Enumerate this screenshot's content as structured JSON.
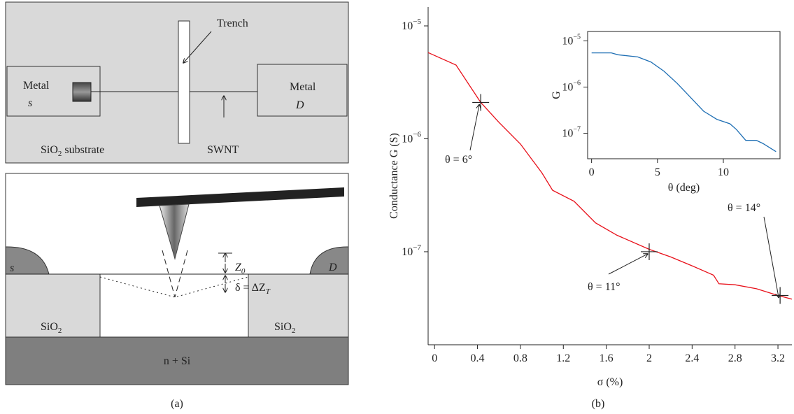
{
  "diagram": {
    "top": {
      "trench": "Trench",
      "metal_s": "Metal",
      "s": "s",
      "metal_d": "Metal",
      "d": "D",
      "swnt": "SWNT",
      "substrate": {
        "base": "SiO",
        "sub": "2",
        "rest": " substrate"
      }
    },
    "bottom": {
      "s": "s",
      "d": "D",
      "z0": {
        "base": "Z",
        "sub": "0"
      },
      "delta": {
        "base": "δ = ΔZ",
        "sub": "T"
      },
      "sio2_left": {
        "base": "SiO",
        "sub": "2"
      },
      "sio2_right": {
        "base": "SiO",
        "sub": "2"
      },
      "substrate": "n + Si"
    }
  },
  "captions": [
    "(a)",
    "(b)"
  ],
  "chart_data": [
    {
      "type": "line",
      "ylabel": "Conductance G (S)",
      "xlabel": "σ (%)",
      "log_y": true,
      "color": "#e8101a",
      "x": [
        -0.06,
        0.2,
        0.43,
        0.6,
        0.8,
        1.0,
        1.1,
        1.3,
        1.5,
        1.7,
        2.0,
        2.2,
        2.4,
        2.6,
        2.65,
        2.8,
        3.0,
        3.2,
        3.33
      ],
      "values": [
        5.8e-06,
        4.5e-06,
        2.1e-06,
        1.4e-06,
        9e-07,
        5e-07,
        3.5e-07,
        2.8e-07,
        1.8e-07,
        1.4e-07,
        1.05e-07,
        9e-08,
        7.5e-08,
        6.2e-08,
        5.2e-08,
        5.1e-08,
        4.7e-08,
        4.1e-08,
        3.8e-08
      ],
      "xlim": [
        -0.06,
        3.33
      ],
      "ylim": [
        1.5e-08,
        1.47e-05
      ],
      "xticks": [
        0,
        0.4,
        0.8,
        1.2,
        1.6,
        2,
        2.4,
        2.8,
        3.2
      ],
      "yticks": [
        {
          "value": 1e-05,
          "label": "10",
          "exponent": "−5"
        },
        {
          "value": 1e-06,
          "label": "10",
          "exponent": "−6"
        },
        {
          "value": 1e-07,
          "label": "10",
          "exponent": "−7"
        }
      ],
      "points": [
        {
          "x": 0.43,
          "y": 2.1e-06,
          "label": "θ = 6°"
        },
        {
          "x": 2.0,
          "y": 1e-07,
          "label": "θ = 11°"
        },
        {
          "x": 3.22,
          "y": 4.1e-08,
          "label": "θ = 14°"
        }
      ]
    },
    {
      "type": "line",
      "ylabel": "G",
      "xlabel": "θ (deg)",
      "log_y": true,
      "color": "#1f6fb4",
      "x": [
        0,
        1.5,
        2,
        3.5,
        4.5,
        5.5,
        6.5,
        7.5,
        8.5,
        9.5,
        10.5,
        11,
        11.7,
        12.5,
        13,
        14
      ],
      "values": [
        5.5e-06,
        5.5e-06,
        5e-06,
        4.5e-06,
        3.5e-06,
        2.2e-06,
        1.2e-06,
        6e-07,
        3e-07,
        2e-07,
        1.6e-07,
        1.2e-07,
        7e-08,
        7e-08,
        6e-08,
        4e-08
      ],
      "xlim": [
        -0.3,
        14.3
      ],
      "ylim": [
        2.8e-08,
        1.6e-05
      ],
      "xticks": [
        0,
        5,
        10
      ],
      "yticks": [
        {
          "value": 1e-05,
          "label": "10",
          "exponent": "−5"
        },
        {
          "value": 1e-06,
          "label": "10",
          "exponent": "−6"
        },
        {
          "value": 1e-07,
          "label": "10",
          "exponent": "−7"
        }
      ]
    }
  ]
}
